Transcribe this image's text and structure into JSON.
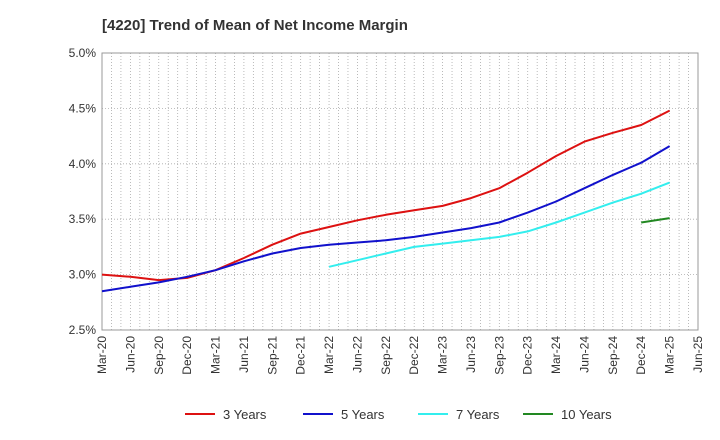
{
  "chart_data": {
    "type": "line",
    "title": "[4220]  Trend of Mean of Net Income Margin",
    "xlabel": "",
    "ylabel": "",
    "x_ticks": [
      "Mar-20",
      "Jun-20",
      "Sep-20",
      "Dec-20",
      "Mar-21",
      "Jun-21",
      "Sep-21",
      "Dec-21",
      "Mar-22",
      "Jun-22",
      "Sep-22",
      "Dec-22",
      "Mar-23",
      "Jun-23",
      "Sep-23",
      "Dec-23",
      "Mar-24",
      "Jun-24",
      "Sep-24",
      "Dec-24",
      "Mar-25",
      "Jun-25"
    ],
    "y_ticks": [
      "2.5%",
      "3.0%",
      "3.5%",
      "4.0%",
      "4.5%",
      "5.0%"
    ],
    "ylim": [
      2.5,
      5.0
    ],
    "grid": true,
    "legend_position": "bottom",
    "series": [
      {
        "name": "3 Years",
        "color": "#dd1111",
        "points": [
          [
            "Mar-20",
            3.0
          ],
          [
            "Jun-20",
            2.98
          ],
          [
            "Sep-20",
            2.95
          ],
          [
            "Dec-20",
            2.97
          ],
          [
            "Mar-21",
            3.04
          ],
          [
            "Jun-21",
            3.15
          ],
          [
            "Sep-21",
            3.27
          ],
          [
            "Dec-21",
            3.37
          ],
          [
            "Mar-22",
            3.43
          ],
          [
            "Jun-22",
            3.49
          ],
          [
            "Sep-22",
            3.54
          ],
          [
            "Dec-22",
            3.58
          ],
          [
            "Mar-23",
            3.62
          ],
          [
            "Jun-23",
            3.69
          ],
          [
            "Sep-23",
            3.78
          ],
          [
            "Dec-23",
            3.92
          ],
          [
            "Mar-24",
            4.07
          ],
          [
            "Jun-24",
            4.2
          ],
          [
            "Sep-24",
            4.28
          ],
          [
            "Dec-24",
            4.35
          ],
          [
            "Mar-25",
            4.48
          ]
        ]
      },
      {
        "name": "5 Years",
        "color": "#1111cc",
        "points": [
          [
            "Mar-20",
            2.85
          ],
          [
            "Jun-20",
            2.89
          ],
          [
            "Sep-20",
            2.93
          ],
          [
            "Dec-20",
            2.98
          ],
          [
            "Mar-21",
            3.04
          ],
          [
            "Jun-21",
            3.12
          ],
          [
            "Sep-21",
            3.19
          ],
          [
            "Dec-21",
            3.24
          ],
          [
            "Mar-22",
            3.27
          ],
          [
            "Jun-22",
            3.29
          ],
          [
            "Sep-22",
            3.31
          ],
          [
            "Dec-22",
            3.34
          ],
          [
            "Mar-23",
            3.38
          ],
          [
            "Jun-23",
            3.42
          ],
          [
            "Sep-23",
            3.47
          ],
          [
            "Dec-23",
            3.56
          ],
          [
            "Mar-24",
            3.66
          ],
          [
            "Jun-24",
            3.78
          ],
          [
            "Sep-24",
            3.9
          ],
          [
            "Dec-24",
            4.01
          ],
          [
            "Mar-25",
            4.16
          ]
        ]
      },
      {
        "name": "7 Years",
        "color": "#33eeee",
        "points": [
          [
            "Mar-22",
            3.07
          ],
          [
            "Jun-22",
            3.13
          ],
          [
            "Sep-22",
            3.19
          ],
          [
            "Dec-22",
            3.25
          ],
          [
            "Mar-23",
            3.28
          ],
          [
            "Jun-23",
            3.31
          ],
          [
            "Sep-23",
            3.34
          ],
          [
            "Dec-23",
            3.39
          ],
          [
            "Mar-24",
            3.47
          ],
          [
            "Jun-24",
            3.56
          ],
          [
            "Sep-24",
            3.65
          ],
          [
            "Dec-24",
            3.73
          ],
          [
            "Mar-25",
            3.83
          ]
        ]
      },
      {
        "name": "10 Years",
        "color": "#228822",
        "points": [
          [
            "Mar-25",
            3.51
          ]
        ],
        "lead_point": [
          "Dec-24",
          3.47
        ]
      }
    ]
  }
}
